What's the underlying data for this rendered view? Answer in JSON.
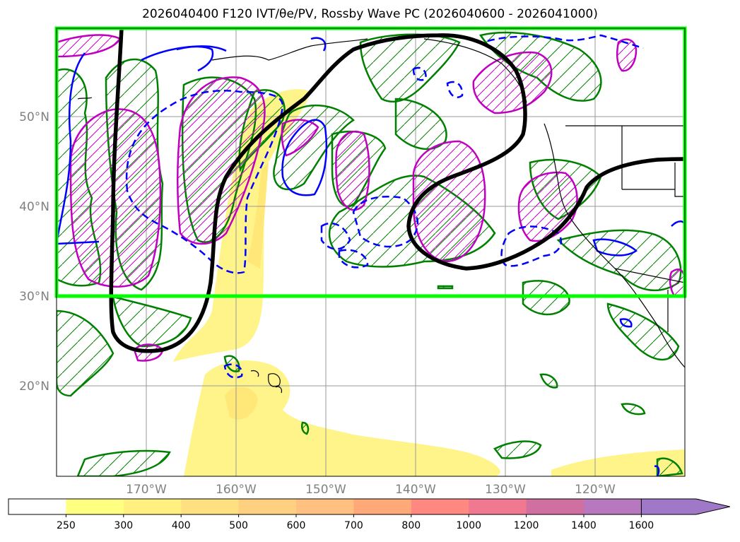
{
  "title": "2026040400 F120 IVT/θe/PV, Rossby Wave PC (2026040600 - 2026041000)",
  "map": {
    "lat_labels": [
      "50°N",
      "40°N",
      "30°N",
      "20°N"
    ],
    "lat_values": [
      50,
      40,
      30,
      20
    ],
    "lon_labels": [
      "170°W",
      "160°W",
      "150°W",
      "140°W",
      "130°W",
      "120°W"
    ],
    "lon_values": [
      -170,
      -160,
      -150,
      -140,
      -130,
      -120
    ],
    "extent": {
      "lon_min": -180,
      "lon_max": -110,
      "lat_min": 10,
      "lat_max": 60
    },
    "highlight_box": {
      "lat_min": 30,
      "lat_max": 60,
      "lon_min": -180,
      "lon_max": -110,
      "color": "#00ff00"
    },
    "line_colors": {
      "pv_contour": "#000000",
      "green_hatch": "#008000",
      "magenta_hatch": "#c000c0",
      "blue_solid": "#0000ff",
      "blue_dashed": "#0000ff",
      "coast": "#000000"
    }
  },
  "colorbar": {
    "labels": [
      "250",
      "300",
      "400",
      "500",
      "600",
      "700",
      "800",
      "1000",
      "1200",
      "1400",
      "1600"
    ],
    "colors": [
      "#ffffff",
      "#ffff80",
      "#fff080",
      "#ffe080",
      "#ffd080",
      "#ffc080",
      "#ffa878",
      "#ff8880",
      "#f07890",
      "#d070a0",
      "#b878c0",
      "#a078c8"
    ],
    "extend": "max"
  }
}
